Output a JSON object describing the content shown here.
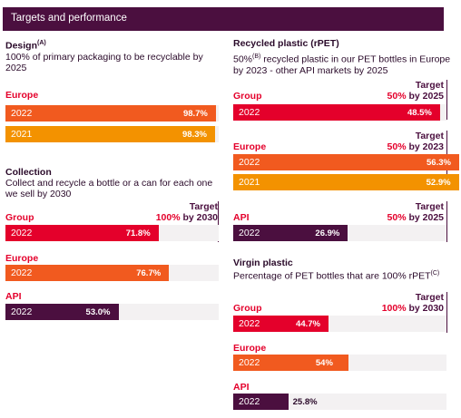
{
  "header": {
    "title": "Targets and performance"
  },
  "colors": {
    "group": "#e4002b",
    "europe": "#f15a1f",
    "europe_2021": "#f39200",
    "api": "#4b0f3f"
  },
  "chart_data": [
    {
      "type": "bar",
      "title": "Design",
      "title_sup": "(A)",
      "subtitle": "100% of primary packaging to be recyclable by 2025",
      "groups": [
        {
          "name": "Europe",
          "bars": [
            {
              "year": "2022",
              "value": 98.7,
              "label": "98.7%"
            },
            {
              "year": "2021",
              "value": 98.3,
              "label": "98.3%"
            }
          ]
        }
      ]
    },
    {
      "type": "bar",
      "title": "Collection",
      "subtitle": "Collect and recycle a bottle or a can for each one we sell by 2030",
      "target": {
        "word": "Target",
        "pct": "100%",
        "by": " by 2030",
        "value": 100
      },
      "groups": [
        {
          "name": "Group",
          "bars": [
            {
              "year": "2022",
              "value": 71.8,
              "label": "71.8%"
            }
          ]
        },
        {
          "name": "Europe",
          "bars": [
            {
              "year": "2022",
              "value": 76.7,
              "label": "76.7%"
            }
          ]
        },
        {
          "name": "API",
          "bars": [
            {
              "year": "2022",
              "value": 53.0,
              "label": "53.0%"
            }
          ]
        }
      ]
    },
    {
      "type": "bar",
      "title": "Recycled plastic (rPET)",
      "subtitle_pre": "50%",
      "subtitle_sup": "(B)",
      "subtitle_rest": " recycled plastic in our PET bottles in Europe by 2023 - other API markets by 2025",
      "groups": [
        {
          "name": "Group",
          "target": {
            "word": "Target",
            "pct": "50%",
            "by": " by 2025",
            "value": 50
          },
          "bars": [
            {
              "year": "2022",
              "value": 48.5,
              "label": "48.5%"
            }
          ]
        },
        {
          "name": "Europe",
          "target": {
            "word": "Target",
            "pct": "50%",
            "by": " by 2023",
            "value": 50
          },
          "bars": [
            {
              "year": "2022",
              "value": 56.3,
              "label": "56.3%"
            },
            {
              "year": "2021",
              "value": 52.9,
              "label": "52.9%"
            }
          ]
        },
        {
          "name": "API",
          "target": {
            "word": "Target",
            "pct": "50%",
            "by": " by 2025",
            "value": 50
          },
          "bars": [
            {
              "year": "2022",
              "value": 26.9,
              "label": "26.9%"
            }
          ]
        }
      ]
    },
    {
      "type": "bar",
      "title": "Virgin plastic",
      "subtitle": "Percentage of PET bottles that are 100% rPET",
      "subtitle_sup": "(C)",
      "target": {
        "word": "Target",
        "pct": "100%",
        "by": " by 2030",
        "value": 100
      },
      "groups": [
        {
          "name": "Group",
          "bars": [
            {
              "year": "2022",
              "value": 44.7,
              "label": "44.7%"
            }
          ]
        },
        {
          "name": "Europe",
          "bars": [
            {
              "year": "2022",
              "value": 54,
              "label": "54%"
            }
          ]
        },
        {
          "name": "API",
          "bars": [
            {
              "year": "2022",
              "value": 25.8,
              "label": "25.8%"
            }
          ]
        }
      ]
    }
  ]
}
